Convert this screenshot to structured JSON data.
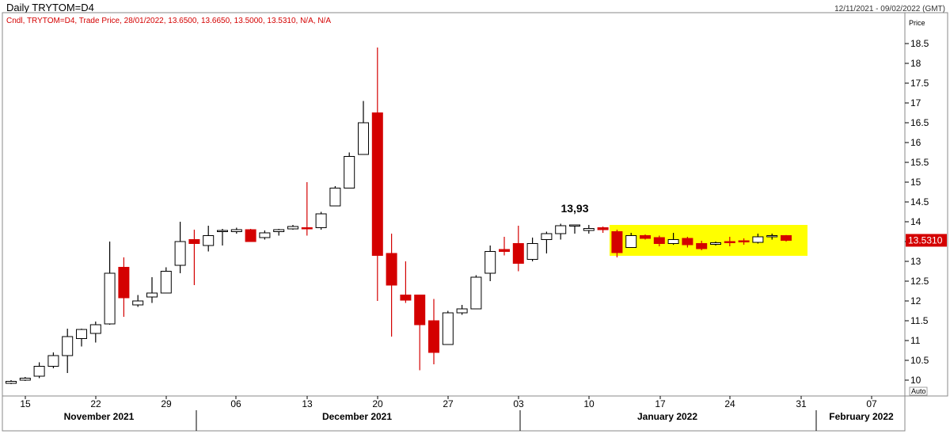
{
  "header": {
    "title": "Daily TRYTOM=D4",
    "date_range": "12/11/2021 - 09/02/2022 (GMT)",
    "legend": "Cndl, TRYTOM=D4, Trade Price, 28/01/2022, 13.6500, 13.6650, 13.5000, 13.5310, N/A, N/A",
    "price_label": "Price",
    "auto_label": "Auto"
  },
  "colors": {
    "up_fill": "#ffffff",
    "down_fill": "#d40000",
    "wick_up": "#000000",
    "wick_down": "#d40000",
    "highlight": "#ffff00",
    "last_value_bg": "#d40000"
  },
  "chart_data": {
    "type": "candlestick",
    "ylim": [
      9.8,
      19.0
    ],
    "y_ticks": [
      "10",
      "10.5",
      "11",
      "11.5",
      "12",
      "12.5",
      "13",
      "13.5",
      "14",
      "14.5",
      "15",
      "15.5",
      "16",
      "16.5",
      "17",
      "17.5",
      "18",
      "18.5"
    ],
    "x_day_ticks": [
      "15",
      "22",
      "29",
      "06",
      "13",
      "20",
      "27",
      "03",
      "10",
      "17",
      "24",
      "31",
      "07"
    ],
    "months": [
      "November 2021",
      "December 2021",
      "January 2022",
      "February 2022"
    ],
    "last_value": "13.5310",
    "annotation": "13,93",
    "candles": [
      {
        "o": 9.92,
        "h": 10.0,
        "l": 9.9,
        "c": 9.97
      },
      {
        "o": 10.0,
        "h": 10.08,
        "l": 9.98,
        "c": 10.05
      },
      {
        "o": 10.1,
        "h": 10.45,
        "l": 10.05,
        "c": 10.35
      },
      {
        "o": 10.35,
        "h": 10.7,
        "l": 10.3,
        "c": 10.62
      },
      {
        "o": 10.62,
        "h": 11.3,
        "l": 10.18,
        "c": 11.1
      },
      {
        "o": 11.05,
        "h": 11.3,
        "l": 10.85,
        "c": 11.28
      },
      {
        "o": 11.18,
        "h": 11.48,
        "l": 10.95,
        "c": 11.4
      },
      {
        "o": 11.42,
        "h": 13.5,
        "l": 11.4,
        "c": 12.7
      },
      {
        "o": 12.85,
        "h": 13.1,
        "l": 11.6,
        "c": 12.08
      },
      {
        "o": 11.9,
        "h": 12.15,
        "l": 11.85,
        "c": 12.0
      },
      {
        "o": 12.1,
        "h": 12.6,
        "l": 11.95,
        "c": 12.2
      },
      {
        "o": 12.2,
        "h": 12.85,
        "l": 12.2,
        "c": 12.75
      },
      {
        "o": 12.9,
        "h": 14.0,
        "l": 12.7,
        "c": 13.5
      },
      {
        "o": 13.55,
        "h": 13.8,
        "l": 12.4,
        "c": 13.45
      },
      {
        "o": 13.4,
        "h": 13.9,
        "l": 13.25,
        "c": 13.65
      },
      {
        "o": 13.78,
        "h": 13.82,
        "l": 13.4,
        "c": 13.78
      },
      {
        "o": 13.75,
        "h": 13.85,
        "l": 13.7,
        "c": 13.8
      },
      {
        "o": 13.8,
        "h": 13.82,
        "l": 13.5,
        "c": 13.5
      },
      {
        "o": 13.6,
        "h": 13.78,
        "l": 13.55,
        "c": 13.72
      },
      {
        "o": 13.75,
        "h": 13.82,
        "l": 13.65,
        "c": 13.8
      },
      {
        "o": 13.82,
        "h": 13.92,
        "l": 13.8,
        "c": 13.88
      },
      {
        "o": 13.85,
        "h": 15.0,
        "l": 13.65,
        "c": 13.82
      },
      {
        "o": 13.85,
        "h": 14.25,
        "l": 13.8,
        "c": 14.2
      },
      {
        "o": 14.4,
        "h": 14.9,
        "l": 14.4,
        "c": 14.85
      },
      {
        "o": 14.85,
        "h": 15.75,
        "l": 14.85,
        "c": 15.65
      },
      {
        "o": 15.7,
        "h": 17.05,
        "l": 15.7,
        "c": 16.5
      },
      {
        "o": 16.75,
        "h": 18.4,
        "l": 12.0,
        "c": 13.15
      },
      {
        "o": 13.2,
        "h": 13.7,
        "l": 11.1,
        "c": 12.4
      },
      {
        "o": 12.15,
        "h": 13.0,
        "l": 11.95,
        "c": 12.02
      },
      {
        "o": 12.15,
        "h": 12.15,
        "l": 10.25,
        "c": 11.4
      },
      {
        "o": 11.5,
        "h": 12.05,
        "l": 10.4,
        "c": 10.7
      },
      {
        "o": 10.9,
        "h": 11.75,
        "l": 10.9,
        "c": 11.7
      },
      {
        "o": 11.7,
        "h": 11.9,
        "l": 11.65,
        "c": 11.8
      },
      {
        "o": 11.8,
        "h": 12.65,
        "l": 11.8,
        "c": 12.6
      },
      {
        "o": 12.7,
        "h": 13.4,
        "l": 12.5,
        "c": 13.25
      },
      {
        "o": 13.3,
        "h": 13.62,
        "l": 13.15,
        "c": 13.25
      },
      {
        "o": 13.45,
        "h": 13.9,
        "l": 12.75,
        "c": 12.95
      },
      {
        "o": 13.05,
        "h": 13.6,
        "l": 13.0,
        "c": 13.45
      },
      {
        "o": 13.55,
        "h": 13.75,
        "l": 13.2,
        "c": 13.7
      },
      {
        "o": 13.7,
        "h": 13.95,
        "l": 13.55,
        "c": 13.9
      },
      {
        "o": 13.9,
        "h": 13.93,
        "l": 13.7,
        "c": 13.92
      },
      {
        "o": 13.78,
        "h": 13.92,
        "l": 13.7,
        "c": 13.83
      },
      {
        "o": 13.85,
        "h": 13.88,
        "l": 13.72,
        "c": 13.8
      },
      {
        "o": 13.75,
        "h": 13.8,
        "l": 13.1,
        "c": 13.22
      },
      {
        "o": 13.35,
        "h": 13.72,
        "l": 13.35,
        "c": 13.65
      },
      {
        "o": 13.65,
        "h": 13.68,
        "l": 13.55,
        "c": 13.58
      },
      {
        "o": 13.6,
        "h": 13.65,
        "l": 13.38,
        "c": 13.45
      },
      {
        "o": 13.45,
        "h": 13.72,
        "l": 13.42,
        "c": 13.55
      },
      {
        "o": 13.58,
        "h": 13.62,
        "l": 13.35,
        "c": 13.42
      },
      {
        "o": 13.45,
        "h": 13.52,
        "l": 13.28,
        "c": 13.32
      },
      {
        "o": 13.43,
        "h": 13.5,
        "l": 13.4,
        "c": 13.47
      },
      {
        "o": 13.5,
        "h": 13.62,
        "l": 13.38,
        "c": 13.48
      },
      {
        "o": 13.52,
        "h": 13.58,
        "l": 13.42,
        "c": 13.5
      },
      {
        "o": 13.48,
        "h": 13.7,
        "l": 13.45,
        "c": 13.62
      },
      {
        "o": 13.62,
        "h": 13.7,
        "l": 13.55,
        "c": 13.65
      },
      {
        "o": 13.65,
        "h": 13.665,
        "l": 13.5,
        "c": 13.531
      }
    ]
  }
}
